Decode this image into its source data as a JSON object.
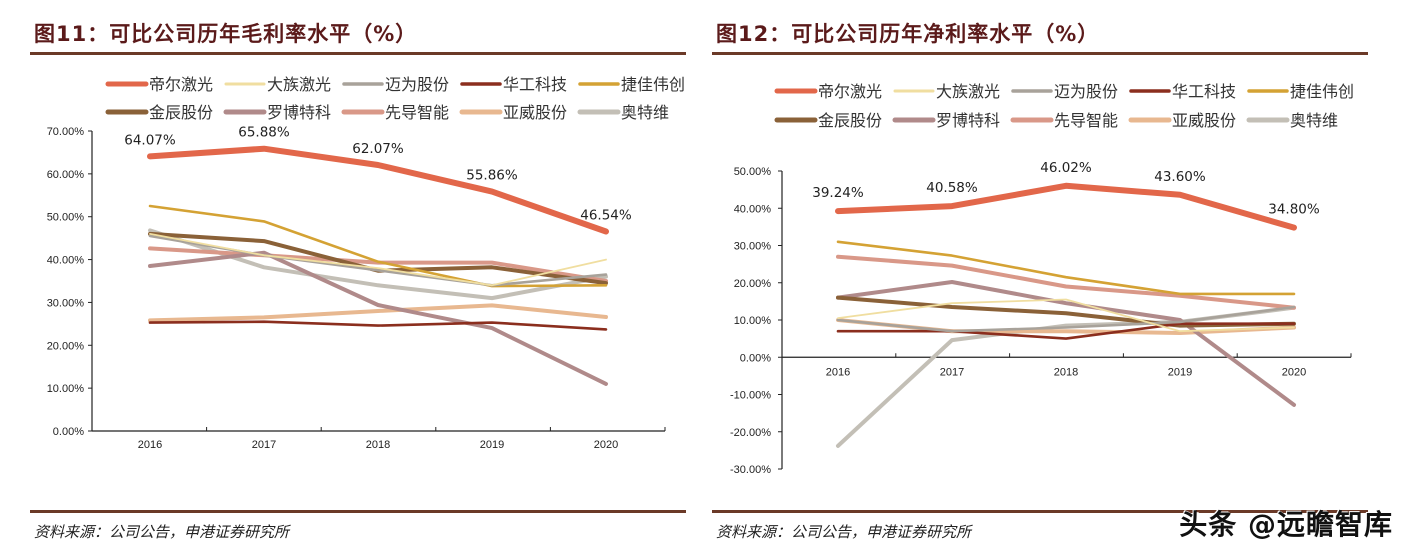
{
  "left": {
    "title": "图11：可比公司历年毛利率水平（%）",
    "source": "资料来源：公司公告，申港证券研究所"
  },
  "right": {
    "title": "图12：可比公司历年净利率水平（%）",
    "source": "资料来源：公司公告，申港证券研究所"
  },
  "watermark": "头条 @远瞻智库",
  "chart_data": [
    {
      "type": "line",
      "title": "图11：可比公司历年毛利率水平（%）",
      "xlabel": "",
      "ylabel": "",
      "categories": [
        "2016",
        "2017",
        "2018",
        "2019",
        "2020"
      ],
      "ylim": [
        0,
        70
      ],
      "yticks": [
        0,
        10,
        20,
        30,
        40,
        50,
        60,
        70
      ],
      "ytick_labels": [
        "0.00%",
        "10.00%",
        "20.00%",
        "30.00%",
        "40.00%",
        "50.00%",
        "60.00%",
        "70.00%"
      ],
      "grid": false,
      "legend": "top",
      "series": [
        {
          "name": "帝尔激光",
          "color": "#e2674a",
          "width": "thick",
          "values": [
            64.07,
            65.88,
            62.07,
            55.86,
            46.54
          ],
          "labels": [
            "64.07%",
            "65.88%",
            "62.07%",
            "55.86%",
            "46.54%"
          ]
        },
        {
          "name": "大族激光",
          "color": "#f0dea0",
          "width": "thin",
          "values": [
            46.0,
            41.0,
            38.0,
            34.0,
            40.0
          ]
        },
        {
          "name": "迈为股份",
          "color": "#a8a29a",
          "width": "medium",
          "values": [
            45.5,
            41.0,
            37.5,
            34.0,
            36.5
          ]
        },
        {
          "name": "华工科技",
          "color": "#8b2e1e",
          "width": "medium",
          "values": [
            25.3,
            25.5,
            24.6,
            25.3,
            23.7
          ]
        },
        {
          "name": "捷佳伟创",
          "color": "#d4a234",
          "width": "medium",
          "values": [
            52.5,
            48.9,
            39.5,
            33.8,
            34.0
          ]
        },
        {
          "name": "金辰股份",
          "color": "#8a6138",
          "width": "thick",
          "values": [
            46.0,
            44.3,
            37.4,
            38.2,
            34.5
          ]
        },
        {
          "name": "罗博特科",
          "color": "#b08a8a",
          "width": "thick",
          "values": [
            38.5,
            41.6,
            29.4,
            24.0,
            11.0
          ]
        },
        {
          "name": "先导智能",
          "color": "#d99888",
          "width": "thick",
          "values": [
            42.6,
            41.0,
            39.3,
            39.3,
            35.0
          ]
        },
        {
          "name": "亚威股份",
          "color": "#e8b890",
          "width": "thick",
          "values": [
            25.8,
            26.5,
            28.0,
            29.3,
            26.6
          ]
        },
        {
          "name": "奥特维",
          "color": "#c3bfb6",
          "width": "thick",
          "values": [
            46.8,
            38.2,
            34.0,
            31.0,
            36.0
          ]
        }
      ]
    },
    {
      "type": "line",
      "title": "图12：可比公司历年净利率水平（%）",
      "xlabel": "",
      "ylabel": "",
      "categories": [
        "2016",
        "2017",
        "2018",
        "2019",
        "2020"
      ],
      "ylim": [
        -30,
        50
      ],
      "yticks": [
        -30,
        -20,
        -10,
        0,
        10,
        20,
        30,
        40,
        50
      ],
      "ytick_labels": [
        "-30.00%",
        "-20.00%",
        "-10.00%",
        "0.00%",
        "10.00%",
        "20.00%",
        "30.00%",
        "40.00%",
        "50.00%"
      ],
      "grid": false,
      "legend": "top",
      "series": [
        {
          "name": "帝尔激光",
          "color": "#e2674a",
          "width": "thick",
          "values": [
            39.24,
            40.58,
            46.02,
            43.6,
            34.8
          ],
          "labels": [
            "39.24%",
            "40.58%",
            "46.02%",
            "43.60%",
            "34.80%"
          ]
        },
        {
          "name": "大族激光",
          "color": "#f0dea0",
          "width": "thin",
          "values": [
            10.5,
            14.5,
            15.5,
            7.0,
            8.0
          ]
        },
        {
          "name": "迈为股份",
          "color": "#a8a29a",
          "width": "medium",
          "values": [
            10.0,
            7.0,
            8.0,
            9.5,
            13.5
          ]
        },
        {
          "name": "华工科技",
          "color": "#8b2e1e",
          "width": "medium",
          "values": [
            7.0,
            7.0,
            5.0,
            9.0,
            9.0
          ]
        },
        {
          "name": "捷佳伟创",
          "color": "#d4a234",
          "width": "medium",
          "values": [
            31.0,
            27.3,
            21.5,
            17.0,
            17.0
          ]
        },
        {
          "name": "金辰股份",
          "color": "#8a6138",
          "width": "thick",
          "values": [
            16.0,
            13.5,
            11.8,
            8.5,
            9.0
          ]
        },
        {
          "name": "罗博特科",
          "color": "#b08a8a",
          "width": "thick",
          "values": [
            16.0,
            20.2,
            14.5,
            10.0,
            -12.8
          ]
        },
        {
          "name": "先导智能",
          "color": "#d99888",
          "width": "thick",
          "values": [
            27.0,
            24.6,
            19.0,
            16.5,
            13.3
          ]
        },
        {
          "name": "亚威股份",
          "color": "#e8b890",
          "width": "thick",
          "values": [
            10.0,
            7.0,
            7.0,
            6.5,
            8.0
          ]
        },
        {
          "name": "奥特维",
          "color": "#c3bfb6",
          "width": "thick",
          "values": [
            -23.8,
            4.6,
            8.5,
            9.5,
            13.3
          ]
        }
      ]
    }
  ]
}
